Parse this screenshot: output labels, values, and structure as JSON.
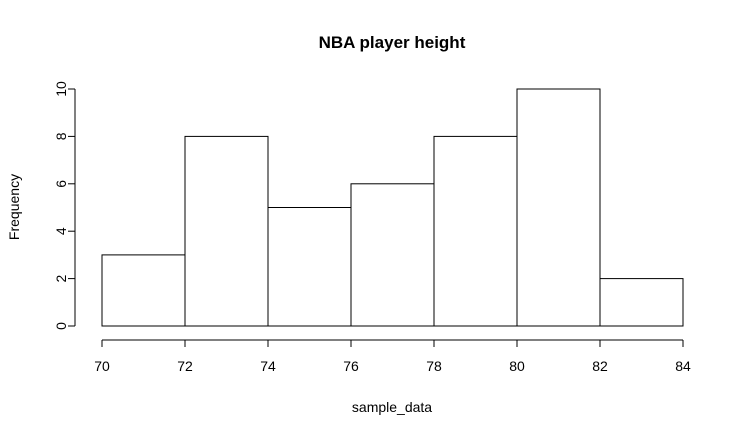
{
  "chart_data": {
    "type": "histogram",
    "title": "NBA player height",
    "xlabel": "sample_data",
    "ylabel": "Frequency",
    "bins": [
      70,
      72,
      74,
      76,
      78,
      80,
      82,
      84
    ],
    "values": [
      3,
      8,
      5,
      6,
      8,
      10,
      2
    ],
    "color": "#ffffff",
    "xlim": [
      70,
      84
    ],
    "xticks": [
      70,
      72,
      74,
      76,
      78,
      80,
      82,
      84
    ],
    "ylim": [
      0,
      10
    ],
    "yticks": [
      0,
      2,
      4,
      6,
      8,
      10
    ]
  }
}
